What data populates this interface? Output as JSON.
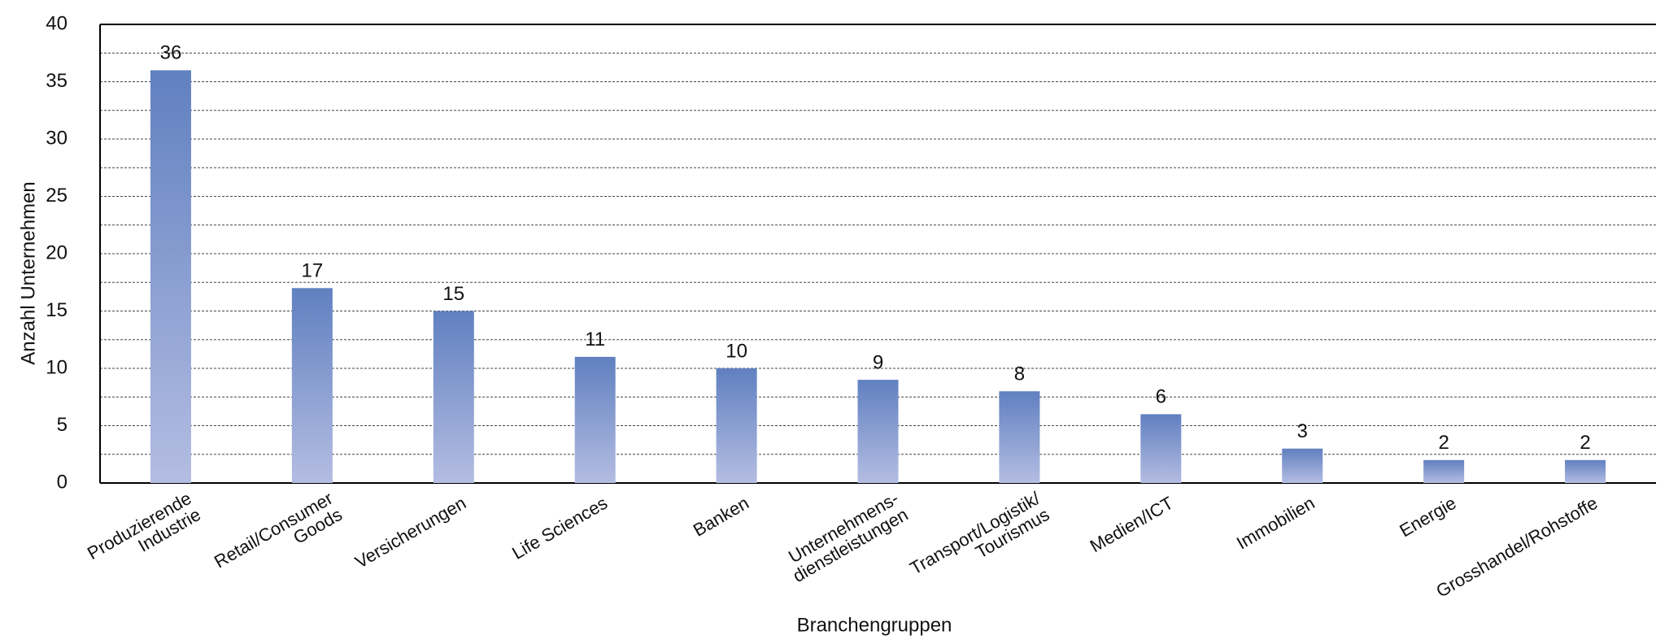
{
  "chart_data": {
    "type": "bar",
    "x_label": "Branchengruppen",
    "y_label": "Anzahl Unternehmen",
    "categories": [
      "Produzierende\nIndustrie",
      "Retail/Consumer\nGoods",
      "Versicherungen",
      "Life Sciences",
      "Banken",
      "Unternehmens-\ndienstleistungen",
      "Transport/Logistik/\nTourismus",
      "Medien/ICT",
      "Immobilien",
      "Energie",
      "Grosshandel/Rohstoffe"
    ],
    "values": [
      36,
      17,
      15,
      11,
      10,
      9,
      8,
      6,
      3,
      2,
      2
    ],
    "color": "#6080c0",
    "color_light": "#b4bde2",
    "ylim": [
      0,
      40
    ],
    "yticks": [
      0,
      5,
      10,
      15,
      20,
      25,
      30,
      35,
      40
    ],
    "minor_yticks": [
      2.5,
      7.5,
      12.5,
      17.5,
      22.5,
      27.5,
      32.5,
      37.5
    ],
    "grid": true
  }
}
